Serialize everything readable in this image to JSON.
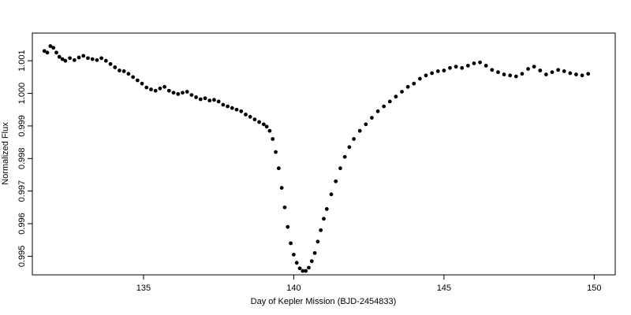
{
  "chart_data": {
    "type": "scatter",
    "title": "",
    "xlabel": "Day of Kepler Mission (BJD-2454833)",
    "ylabel": "Normalized Flux",
    "xlim": [
      131.3,
      150.7
    ],
    "ylim": [
      0.99443,
      1.00185
    ],
    "xticks": [
      135,
      140,
      145,
      150
    ],
    "xtick_labels": [
      "135",
      "140",
      "145",
      "150"
    ],
    "yticks": [
      0.995,
      0.996,
      0.997,
      0.998,
      0.999,
      1.0,
      1.001
    ],
    "ytick_labels": [
      "0.995",
      "0.996",
      "0.997",
      "0.998",
      "0.999",
      "1.000",
      "1.001"
    ],
    "grid": false,
    "marker_color": "#000000",
    "series": [
      {
        "points": [
          [
            131.7,
            1.0013
          ],
          [
            131.8,
            1.00125
          ],
          [
            131.9,
            1.00145
          ],
          [
            132.0,
            1.0014
          ],
          [
            132.1,
            1.00125
          ],
          [
            132.2,
            1.00112
          ],
          [
            132.3,
            1.00105
          ],
          [
            132.4,
            1.001
          ],
          [
            132.55,
            1.00108
          ],
          [
            132.7,
            1.00102
          ],
          [
            132.85,
            1.0011
          ],
          [
            133.0,
            1.00115
          ],
          [
            133.15,
            1.00108
          ],
          [
            133.3,
            1.00105
          ],
          [
            133.45,
            1.00102
          ],
          [
            133.6,
            1.00108
          ],
          [
            133.75,
            1.001
          ],
          [
            133.9,
            1.0009
          ],
          [
            134.05,
            1.0008
          ],
          [
            134.2,
            1.0007
          ],
          [
            134.35,
            1.00068
          ],
          [
            134.5,
            1.0006
          ],
          [
            134.65,
            1.0005
          ],
          [
            134.8,
            1.0004
          ],
          [
            134.95,
            1.0003
          ],
          [
            135.1,
            1.00018
          ],
          [
            135.25,
            1.00012
          ],
          [
            135.4,
            1.00008
          ],
          [
            135.55,
            1.00015
          ],
          [
            135.7,
            1.0002
          ],
          [
            135.85,
            1.00008
          ],
          [
            136.0,
            1.00002
          ],
          [
            136.15,
            0.99998
          ],
          [
            136.3,
            1.00002
          ],
          [
            136.45,
            1.00005
          ],
          [
            136.6,
            0.99995
          ],
          [
            136.75,
            0.99988
          ],
          [
            136.9,
            0.99982
          ],
          [
            137.05,
            0.99985
          ],
          [
            137.2,
            0.99978
          ],
          [
            137.35,
            0.9998
          ],
          [
            137.5,
            0.99975
          ],
          [
            137.65,
            0.99965
          ],
          [
            137.8,
            0.9996
          ],
          [
            137.95,
            0.99955
          ],
          [
            138.1,
            0.9995
          ],
          [
            138.25,
            0.99945
          ],
          [
            138.4,
            0.99935
          ],
          [
            138.55,
            0.99928
          ],
          [
            138.7,
            0.9992
          ],
          [
            138.85,
            0.99912
          ],
          [
            139.0,
            0.99905
          ],
          [
            139.1,
            0.99898
          ],
          [
            139.2,
            0.99885
          ],
          [
            139.3,
            0.9986
          ],
          [
            139.4,
            0.9982
          ],
          [
            139.5,
            0.9977
          ],
          [
            139.6,
            0.9971
          ],
          [
            139.7,
            0.9965
          ],
          [
            139.8,
            0.9959
          ],
          [
            139.9,
            0.9954
          ],
          [
            140.0,
            0.99505
          ],
          [
            140.1,
            0.9948
          ],
          [
            140.2,
            0.99463
          ],
          [
            140.3,
            0.99455
          ],
          [
            140.4,
            0.99455
          ],
          [
            140.5,
            0.99465
          ],
          [
            140.6,
            0.99485
          ],
          [
            140.7,
            0.9951
          ],
          [
            140.8,
            0.99545
          ],
          [
            140.9,
            0.9958
          ],
          [
            141.0,
            0.99615
          ],
          [
            141.1,
            0.99645
          ],
          [
            141.25,
            0.9969
          ],
          [
            141.4,
            0.9973
          ],
          [
            141.55,
            0.9977
          ],
          [
            141.7,
            0.99805
          ],
          [
            141.85,
            0.99835
          ],
          [
            142.0,
            0.9986
          ],
          [
            142.2,
            0.99885
          ],
          [
            142.4,
            0.99905
          ],
          [
            142.6,
            0.99925
          ],
          [
            142.8,
            0.99945
          ],
          [
            143.0,
            0.9996
          ],
          [
            143.2,
            0.99975
          ],
          [
            143.4,
            0.9999
          ],
          [
            143.6,
            1.00005
          ],
          [
            143.8,
            1.0002
          ],
          [
            144.0,
            1.0003
          ],
          [
            144.2,
            1.00045
          ],
          [
            144.4,
            1.00055
          ],
          [
            144.6,
            1.00062
          ],
          [
            144.8,
            1.00068
          ],
          [
            145.0,
            1.0007
          ],
          [
            145.2,
            1.00078
          ],
          [
            145.4,
            1.00082
          ],
          [
            145.6,
            1.00078
          ],
          [
            145.8,
            1.00085
          ],
          [
            146.0,
            1.00092
          ],
          [
            146.2,
            1.00095
          ],
          [
            146.4,
            1.00085
          ],
          [
            146.6,
            1.00072
          ],
          [
            146.8,
            1.00065
          ],
          [
            147.0,
            1.00058
          ],
          [
            147.2,
            1.00055
          ],
          [
            147.4,
            1.00052
          ],
          [
            147.6,
            1.0006
          ],
          [
            147.8,
            1.00075
          ],
          [
            148.0,
            1.00082
          ],
          [
            148.2,
            1.0007
          ],
          [
            148.4,
            1.00058
          ],
          [
            148.6,
            1.00065
          ],
          [
            148.8,
            1.00072
          ],
          [
            149.0,
            1.00068
          ],
          [
            149.2,
            1.00062
          ],
          [
            149.4,
            1.00058
          ],
          [
            149.6,
            1.00055
          ],
          [
            149.8,
            1.0006
          ]
        ]
      }
    ]
  }
}
